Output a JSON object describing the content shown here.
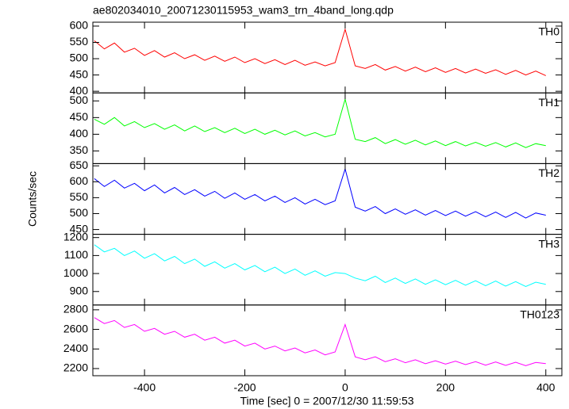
{
  "chart_data": {
    "type": "line",
    "title": "ae802034010_20071230115953_wam3_trn_4band_long.qdp",
    "ylabel": "Counts/sec",
    "xlabel": "Time [sec] 0 = 2007/12/30 11:59:53",
    "x": [
      -500,
      -480,
      -460,
      -440,
      -420,
      -400,
      -380,
      -360,
      -340,
      -320,
      -300,
      -280,
      -260,
      -240,
      -220,
      -200,
      -180,
      -160,
      -140,
      -120,
      -100,
      -80,
      -60,
      -40,
      -20,
      0,
      20,
      40,
      60,
      80,
      100,
      120,
      140,
      160,
      180,
      200,
      220,
      240,
      260,
      280,
      300,
      320,
      340,
      360,
      380,
      400
    ],
    "xlim": [
      -503,
      432
    ],
    "xticks": [
      -400,
      -200,
      0,
      200,
      400
    ],
    "series": [
      {
        "name": "TH0",
        "color": "#ff0000",
        "ylim": [
          395,
          612
        ],
        "yticks": [
          400,
          450,
          500,
          550,
          600
        ],
        "values": [
          555,
          530,
          548,
          520,
          532,
          510,
          525,
          505,
          518,
          500,
          512,
          495,
          508,
          492,
          505,
          488,
          500,
          485,
          497,
          482,
          495,
          480,
          490,
          478,
          488,
          590,
          478,
          470,
          482,
          465,
          476,
          462,
          474,
          460,
          472,
          458,
          470,
          456,
          468,
          455,
          466,
          452,
          464,
          450,
          462,
          448
        ]
      },
      {
        "name": "TH1",
        "color": "#00ff00",
        "ylim": [
          312,
          524
        ],
        "yticks": [
          350,
          400,
          450,
          500
        ],
        "values": [
          445,
          430,
          450,
          425,
          438,
          420,
          432,
          415,
          428,
          410,
          425,
          408,
          420,
          405,
          418,
          402,
          415,
          400,
          412,
          398,
          410,
          395,
          405,
          392,
          400,
          505,
          385,
          378,
          390,
          372,
          384,
          370,
          382,
          368,
          380,
          366,
          378,
          365,
          376,
          364,
          375,
          362,
          374,
          360,
          372,
          366
        ]
      },
      {
        "name": "TH2",
        "color": "#0000ff",
        "ylim": [
          435,
          657
        ],
        "yticks": [
          450,
          500,
          550,
          600,
          650
        ],
        "values": [
          610,
          585,
          605,
          580,
          595,
          572,
          590,
          565,
          582,
          560,
          575,
          555,
          570,
          548,
          565,
          545,
          560,
          540,
          555,
          535,
          550,
          530,
          545,
          528,
          540,
          640,
          520,
          508,
          522,
          500,
          515,
          498,
          512,
          495,
          510,
          494,
          508,
          492,
          506,
          490,
          505,
          488,
          504,
          486,
          502,
          495
        ]
      },
      {
        "name": "TH3",
        "color": "#00ffff",
        "ylim": [
          825,
          1218
        ],
        "yticks": [
          900,
          1000,
          1100,
          1200
        ],
        "values": [
          1160,
          1120,
          1140,
          1100,
          1125,
          1085,
          1110,
          1070,
          1095,
          1055,
          1080,
          1040,
          1065,
          1030,
          1055,
          1020,
          1045,
          1010,
          1035,
          1000,
          1025,
          990,
          1015,
          985,
          1005,
          1000,
          975,
          960,
          985,
          950,
          975,
          945,
          970,
          940,
          965,
          938,
          962,
          935,
          960,
          932,
          958,
          930,
          955,
          928,
          952,
          940
        ]
      },
      {
        "name": "TH0123",
        "color": "#ff00ff",
        "ylim": [
          2127,
          2849
        ],
        "yticks": [
          2200,
          2400,
          2600,
          2800
        ],
        "values": [
          2720,
          2660,
          2690,
          2620,
          2650,
          2580,
          2610,
          2550,
          2580,
          2520,
          2550,
          2490,
          2520,
          2460,
          2490,
          2430,
          2460,
          2400,
          2430,
          2380,
          2410,
          2360,
          2390,
          2340,
          2370,
          2650,
          2320,
          2290,
          2320,
          2270,
          2300,
          2260,
          2290,
          2250,
          2280,
          2245,
          2275,
          2240,
          2270,
          2235,
          2268,
          2232,
          2265,
          2230,
          2262,
          2250
        ]
      }
    ]
  }
}
